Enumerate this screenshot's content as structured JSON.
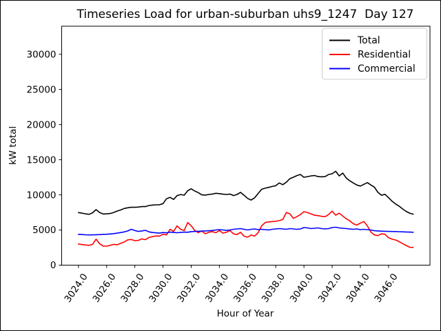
{
  "chart_data": {
    "type": "line",
    "title": "Timeseries Load for urban-suburban uhs9_1247  Day 127",
    "xlabel": "Hour of Year",
    "ylabel": "kW total",
    "grid": false,
    "legend_position": "upper right",
    "xlim": [
      3022.81,
      3048.94
    ],
    "ylim": [
      0,
      34000
    ],
    "x_ticks": [
      3024.0,
      3026.0,
      3028.0,
      3030.0,
      3032.0,
      3034.0,
      3036.0,
      3038.0,
      3040.0,
      3042.0,
      3044.0,
      3046.0
    ],
    "y_ticks": [
      0,
      5000,
      10000,
      15000,
      20000,
      25000,
      30000
    ],
    "x_start": 3024.0,
    "x_step": 0.25,
    "series": [
      {
        "name": "Total",
        "color": "#000000",
        "values": [
          7480,
          7400,
          7300,
          7230,
          7450,
          7900,
          7500,
          7280,
          7300,
          7350,
          7500,
          7700,
          7850,
          8070,
          8160,
          8230,
          8230,
          8260,
          8330,
          8330,
          8490,
          8550,
          8590,
          8600,
          8750,
          9460,
          9650,
          9350,
          9900,
          10050,
          9950,
          10600,
          10860,
          10550,
          10320,
          10000,
          9970,
          10060,
          10120,
          10220,
          10180,
          10100,
          10060,
          10120,
          9900,
          10060,
          10350,
          9950,
          9500,
          9260,
          9580,
          10200,
          10800,
          10950,
          11070,
          11200,
          11300,
          11700,
          11450,
          11800,
          12300,
          12510,
          12750,
          12900,
          12500,
          12600,
          12700,
          12760,
          12600,
          12570,
          12600,
          12900,
          13000,
          13350,
          12700,
          13100,
          12400,
          12000,
          11700,
          11400,
          11250,
          11500,
          11750,
          11400,
          11100,
          10350,
          9950,
          10080,
          9600,
          9100,
          8700,
          8400,
          8000,
          7650,
          7400,
          7250
        ]
      },
      {
        "name": "Residential",
        "color": "#ff0000",
        "values": [
          3000,
          2930,
          2870,
          2820,
          2950,
          3700,
          3050,
          2720,
          2700,
          2820,
          2950,
          2900,
          3100,
          3300,
          3600,
          3650,
          3480,
          3520,
          3740,
          3620,
          3930,
          4060,
          4150,
          4130,
          4400,
          4300,
          5100,
          4800,
          5580,
          5100,
          4930,
          6060,
          5600,
          4950,
          4620,
          4870,
          4460,
          4680,
          4770,
          4610,
          4930,
          4550,
          4680,
          4930,
          4450,
          4350,
          4680,
          4130,
          3970,
          4290,
          4130,
          4610,
          5600,
          6060,
          6150,
          6200,
          6240,
          6340,
          6500,
          7500,
          7300,
          6650,
          6900,
          7200,
          7600,
          7500,
          7300,
          7100,
          7050,
          6950,
          6900,
          7200,
          7680,
          7100,
          7400,
          7000,
          6600,
          6300,
          5900,
          5700,
          5990,
          6200,
          5580,
          4700,
          4300,
          4200,
          4450,
          4400,
          3900,
          3700,
          3580,
          3350,
          3070,
          2800,
          2550,
          2520
        ]
      },
      {
        "name": "Commercial",
        "color": "#0000ff",
        "values": [
          4390,
          4360,
          4320,
          4300,
          4310,
          4330,
          4350,
          4390,
          4400,
          4440,
          4480,
          4550,
          4640,
          4730,
          4870,
          5100,
          4930,
          4800,
          4870,
          4960,
          4740,
          4640,
          4600,
          4550,
          4640,
          4600,
          4700,
          4650,
          4610,
          4650,
          4700,
          4680,
          4770,
          4800,
          4820,
          4850,
          4870,
          4900,
          4930,
          5000,
          5050,
          5000,
          4950,
          5000,
          5100,
          5150,
          5200,
          5100,
          5000,
          5100,
          5150,
          5050,
          5100,
          5050,
          5000,
          5100,
          5150,
          5200,
          5150,
          5100,
          5200,
          5150,
          5100,
          5150,
          5350,
          5300,
          5200,
          5250,
          5300,
          5200,
          5150,
          5200,
          5350,
          5400,
          5300,
          5250,
          5200,
          5150,
          5100,
          5150,
          5050,
          5100,
          5050,
          5000,
          4900,
          4870,
          4840,
          4820,
          4800,
          4790,
          4780,
          4760,
          4740,
          4720,
          4700,
          4680
        ]
      }
    ]
  }
}
